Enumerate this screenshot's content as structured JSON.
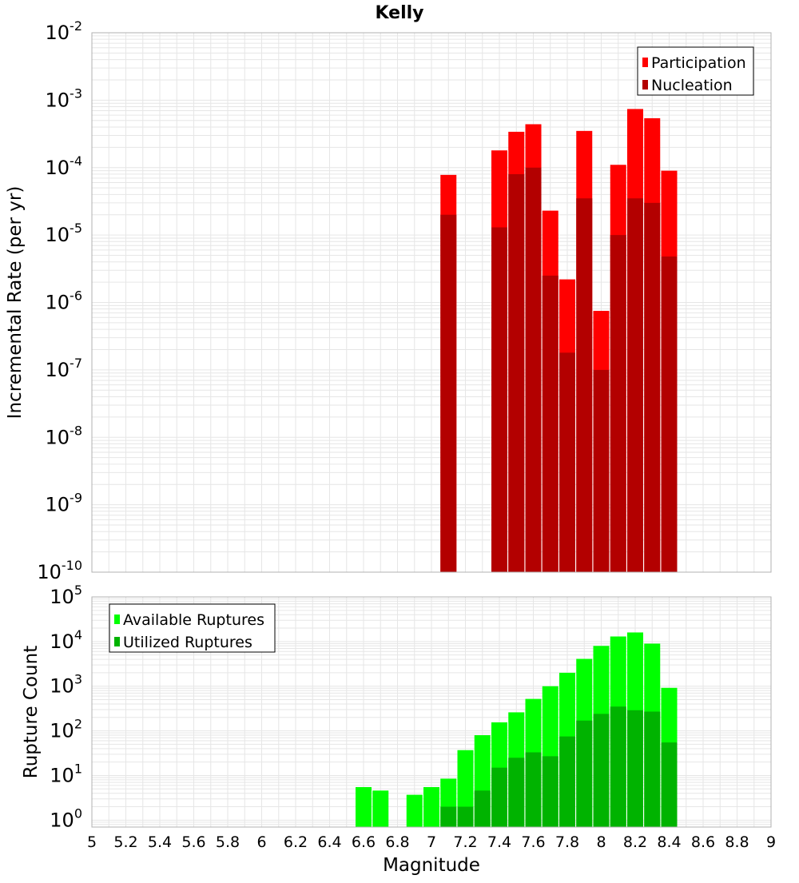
{
  "title": "Kelly",
  "xlabel": "Magnitude",
  "x_ticks": [
    "5",
    "5.2",
    "5.4",
    "5.6",
    "5.8",
    "6",
    "6.2",
    "6.4",
    "6.6",
    "6.8",
    "7",
    "7.2",
    "7.4",
    "7.6",
    "7.8",
    "8",
    "8.2",
    "8.4",
    "8.6",
    "8.8",
    "9"
  ],
  "colors": {
    "participation": "#ff0000",
    "nucleation": "#b30000",
    "available": "#00ff00",
    "utilized": "#00b300",
    "grid": "#e6e6e6",
    "frame": "#b0b0b0"
  },
  "chart_data": [
    {
      "type": "bar",
      "title": "Kelly",
      "xlabel": "Magnitude",
      "ylabel": "Incremental Rate (per yr)",
      "yscale": "log",
      "xlim": [
        5,
        9
      ],
      "ylim": [
        1e-10,
        0.01
      ],
      "y_tick_exponents": [
        "-2",
        "-3",
        "-4",
        "-5",
        "-6",
        "-7",
        "-8",
        "-9",
        "-10"
      ],
      "legend_position": "top-right",
      "grid": true,
      "x": [
        7.1,
        7.2,
        7.3,
        7.4,
        7.5,
        7.6,
        7.7,
        7.8,
        7.9,
        8.0,
        8.1,
        8.2,
        8.3,
        8.4
      ],
      "series": [
        {
          "name": "Participation",
          "color": "#ff0000",
          "values": [
            7.8e-05,
            null,
            null,
            0.00018,
            0.00034,
            0.00044,
            2.3e-05,
            2.2e-06,
            0.00035,
            7.5e-07,
            0.00011,
            0.00074,
            0.00054,
            9e-05
          ]
        },
        {
          "name": "Nucleation",
          "color": "#b30000",
          "values": [
            2e-05,
            null,
            null,
            1.3e-05,
            8e-05,
            0.0001,
            2.5e-06,
            1.8e-07,
            3.5e-05,
            1e-07,
            1e-05,
            3.5e-05,
            3e-05,
            4.8e-06
          ]
        }
      ]
    },
    {
      "type": "bar",
      "xlabel": "Magnitude",
      "ylabel": "Rupture Count",
      "yscale": "log",
      "xlim": [
        5,
        9
      ],
      "ylim": [
        0.7,
        100000
      ],
      "y_tick_exponents": [
        "5",
        "4",
        "3",
        "2",
        "1",
        "0"
      ],
      "legend_position": "top-left",
      "grid": true,
      "x": [
        6.6,
        6.7,
        6.8,
        6.9,
        7.0,
        7.1,
        7.2,
        7.3,
        7.4,
        7.5,
        7.6,
        7.7,
        7.8,
        7.9,
        8.0,
        8.1,
        8.2,
        8.3,
        8.4
      ],
      "series": [
        {
          "name": "Available Ruptures",
          "color": "#00ff00",
          "values": [
            5.5,
            4.6,
            null,
            3.7,
            5.5,
            8.5,
            37,
            80,
            155,
            260,
            520,
            1000,
            2000,
            4100,
            8000,
            13000,
            16000,
            9000,
            920
          ]
        },
        {
          "name": "Utilized Ruptures",
          "color": "#00b300",
          "values": [
            null,
            null,
            null,
            null,
            null,
            2,
            2,
            4.6,
            15,
            25,
            33,
            27,
            75,
            170,
            240,
            350,
            290,
            270,
            55
          ]
        }
      ]
    }
  ]
}
